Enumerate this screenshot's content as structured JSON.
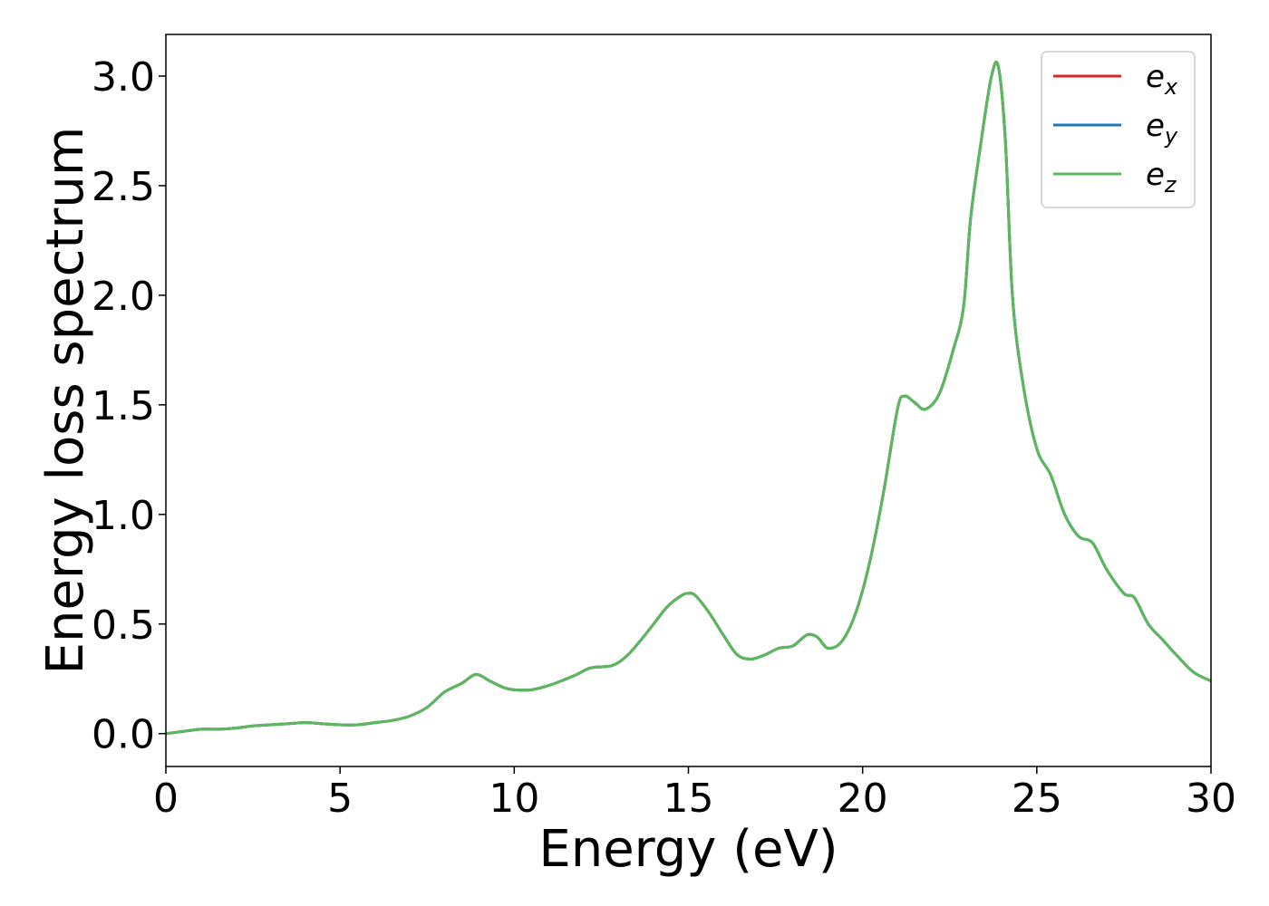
{
  "chart_data": {
    "type": "line",
    "title": "",
    "xlabel": "Energy (eV)",
    "ylabel": "Energy loss spectrum",
    "xlim": [
      0,
      30
    ],
    "ylim": [
      -0.15,
      3.19
    ],
    "xticks": [
      0,
      5,
      10,
      15,
      20,
      25,
      30
    ],
    "yticks": [
      0.0,
      0.5,
      1.0,
      1.5,
      2.0,
      2.5,
      3.0
    ],
    "xtick_labels": [
      "0",
      "5",
      "10",
      "15",
      "20",
      "25",
      "30"
    ],
    "ytick_labels": [
      "0.0",
      "0.5",
      "1.0",
      "1.5",
      "2.0",
      "2.5",
      "3.0"
    ],
    "grid": false,
    "legend_position": "top-right",
    "x": [
      0,
      0.5,
      1,
      1.5,
      2,
      2.5,
      3,
      3.5,
      4,
      4.5,
      5,
      5.5,
      6,
      6.5,
      7,
      7.5,
      8,
      8.5,
      8.9,
      9.3,
      9.7,
      10,
      10.5,
      11,
      11.5,
      11.8,
      12.2,
      12.8,
      13.2,
      13.6,
      14,
      14.4,
      14.8,
      15,
      15.2,
      15.6,
      16,
      16.4,
      16.8,
      17.2,
      17.6,
      18,
      18.4,
      18.7,
      19,
      19.4,
      19.8,
      20.2,
      20.6,
      21,
      21.2,
      21.5,
      21.8,
      22.2,
      22.6,
      22.9,
      23.1,
      23.4,
      23.7,
      23.9,
      24.1,
      24.3,
      24.6,
      25,
      25.4,
      25.8,
      26.2,
      26.6,
      27,
      27.5,
      27.8,
      28.2,
      28.6,
      29,
      29.5,
      30
    ],
    "series": [
      {
        "name": "e_x",
        "label_base": "e",
        "label_sub": "x",
        "color": "#d62728",
        "values": [
          0.0,
          0.01,
          0.02,
          0.02,
          0.025,
          0.035,
          0.04,
          0.045,
          0.05,
          0.045,
          0.04,
          0.04,
          0.05,
          0.06,
          0.08,
          0.12,
          0.19,
          0.23,
          0.27,
          0.24,
          0.21,
          0.2,
          0.2,
          0.22,
          0.25,
          0.27,
          0.3,
          0.31,
          0.35,
          0.42,
          0.5,
          0.58,
          0.63,
          0.64,
          0.63,
          0.55,
          0.45,
          0.36,
          0.34,
          0.36,
          0.39,
          0.4,
          0.45,
          0.44,
          0.39,
          0.42,
          0.55,
          0.78,
          1.1,
          1.48,
          1.54,
          1.51,
          1.48,
          1.55,
          1.75,
          1.95,
          2.35,
          2.7,
          3.0,
          3.04,
          2.7,
          2.0,
          1.6,
          1.3,
          1.18,
          1.0,
          0.9,
          0.87,
          0.75,
          0.64,
          0.62,
          0.5,
          0.43,
          0.36,
          0.28,
          0.24
        ]
      },
      {
        "name": "e_y",
        "label_base": "e",
        "label_sub": "y",
        "color": "#1f77b4",
        "values": [
          0.0,
          0.01,
          0.02,
          0.02,
          0.025,
          0.035,
          0.04,
          0.045,
          0.05,
          0.045,
          0.04,
          0.04,
          0.05,
          0.06,
          0.08,
          0.12,
          0.19,
          0.23,
          0.27,
          0.24,
          0.21,
          0.2,
          0.2,
          0.22,
          0.25,
          0.27,
          0.3,
          0.31,
          0.35,
          0.42,
          0.5,
          0.58,
          0.63,
          0.64,
          0.63,
          0.55,
          0.45,
          0.36,
          0.34,
          0.36,
          0.39,
          0.4,
          0.45,
          0.44,
          0.39,
          0.42,
          0.55,
          0.78,
          1.1,
          1.48,
          1.54,
          1.51,
          1.48,
          1.55,
          1.75,
          1.95,
          2.35,
          2.7,
          3.0,
          3.04,
          2.7,
          2.0,
          1.6,
          1.3,
          1.18,
          1.0,
          0.9,
          0.87,
          0.75,
          0.64,
          0.62,
          0.5,
          0.43,
          0.36,
          0.28,
          0.24
        ]
      },
      {
        "name": "e_z",
        "label_base": "e",
        "label_sub": "z",
        "color": "#5cb85c",
        "values": [
          0.0,
          0.01,
          0.02,
          0.02,
          0.025,
          0.035,
          0.04,
          0.045,
          0.05,
          0.045,
          0.04,
          0.04,
          0.05,
          0.06,
          0.08,
          0.12,
          0.19,
          0.23,
          0.27,
          0.24,
          0.21,
          0.2,
          0.2,
          0.22,
          0.25,
          0.27,
          0.3,
          0.31,
          0.35,
          0.42,
          0.5,
          0.58,
          0.63,
          0.64,
          0.63,
          0.55,
          0.45,
          0.36,
          0.34,
          0.36,
          0.39,
          0.4,
          0.45,
          0.44,
          0.39,
          0.42,
          0.55,
          0.78,
          1.1,
          1.48,
          1.54,
          1.51,
          1.48,
          1.55,
          1.75,
          1.95,
          2.35,
          2.7,
          3.0,
          3.04,
          2.7,
          2.0,
          1.6,
          1.3,
          1.18,
          1.0,
          0.9,
          0.87,
          0.75,
          0.64,
          0.62,
          0.5,
          0.43,
          0.36,
          0.28,
          0.24
        ]
      }
    ]
  }
}
